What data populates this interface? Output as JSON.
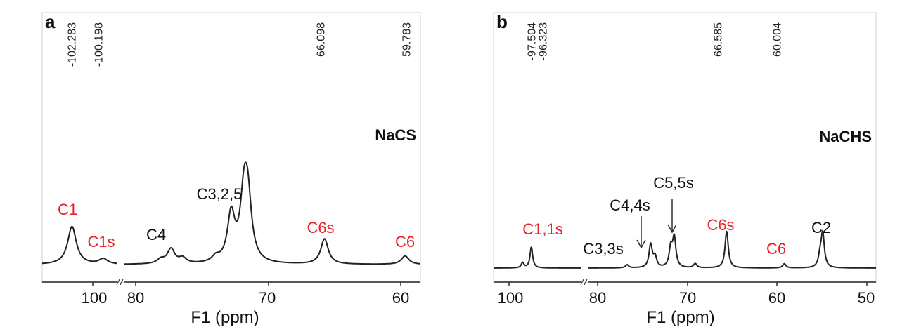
{
  "colors": {
    "black": "#111111",
    "red": "#e8202a",
    "frame": "#d9d9d9"
  },
  "chart_data": [
    {
      "panel": "a",
      "type": "line",
      "sample": "NaCS",
      "xlabel": "F1 (ppm)",
      "x_axis": "reversed, broken between 100 and 80 ppm",
      "x_segments": [
        [
          104.3,
          99.3
        ],
        [
          81.8,
          58.6
        ]
      ],
      "ticks": [
        "100",
        "80",
        "70",
        "60"
      ],
      "shift_labels": [
        "-102.283",
        "-100.198",
        "66.098",
        "59.783"
      ],
      "assignments": [
        {
          "label": "C1",
          "color": "red"
        },
        {
          "label": "C1s",
          "color": "red"
        },
        {
          "label": "C4",
          "color": "black"
        },
        {
          "label": "C3,2,5",
          "color": "black"
        },
        {
          "label": "C6s",
          "color": "red"
        },
        {
          "label": "C6",
          "color": "red"
        }
      ],
      "peaks": [
        {
          "ppm": 102.3,
          "height": 0.36
        },
        {
          "ppm": 100.2,
          "height": 0.05
        },
        {
          "ppm": 78.9,
          "height": 0.04
        },
        {
          "ppm": 78.1,
          "height": 0.14
        },
        {
          "ppm": 77.2,
          "height": 0.05
        },
        {
          "ppm": 74.6,
          "height": 0.05
        },
        {
          "ppm": 73.4,
          "height": 0.45
        },
        {
          "ppm": 72.4,
          "height": 0.55
        },
        {
          "ppm": 72.1,
          "height": 0.55
        },
        {
          "ppm": 66.1,
          "height": 0.24
        },
        {
          "ppm": 59.8,
          "height": 0.08
        }
      ]
    },
    {
      "panel": "b",
      "type": "line",
      "sample": "NaCHS",
      "xlabel": "F1 (ppm)",
      "x_axis": "reversed, broken between 90 and 82 ppm",
      "x_segments": [
        [
          101.5,
          89.5
        ],
        [
          82.5,
          49.5
        ]
      ],
      "ticks": [
        "100",
        "80",
        "70",
        "60",
        "50"
      ],
      "shift_labels": [
        "-97.504",
        "-96.323",
        "66.585",
        "60.004"
      ],
      "assignments": [
        {
          "label": "C1,1s",
          "color": "red"
        },
        {
          "label": "C3,3s",
          "color": "black"
        },
        {
          "label": "C4,4s",
          "color": "black"
        },
        {
          "label": "C5,5s",
          "color": "black"
        },
        {
          "label": "C6s",
          "color": "red"
        },
        {
          "label": "C6",
          "color": "red"
        },
        {
          "label": "C2",
          "color": "black"
        }
      ],
      "peaks": [
        {
          "ppm": 97.5,
          "height": 0.05
        },
        {
          "ppm": 96.3,
          "height": 0.2
        },
        {
          "ppm": 78.0,
          "height": 0.03
        },
        {
          "ppm": 75.3,
          "height": 0.22
        },
        {
          "ppm": 74.8,
          "height": 0.1
        },
        {
          "ppm": 73.0,
          "height": 0.18
        },
        {
          "ppm": 72.6,
          "height": 0.28
        },
        {
          "ppm": 70.2,
          "height": 0.04
        },
        {
          "ppm": 66.6,
          "height": 0.35
        },
        {
          "ppm": 60.0,
          "height": 0.04
        },
        {
          "ppm": 55.6,
          "height": 0.32
        },
        {
          "ppm": 55.9,
          "height": 0.1
        }
      ]
    }
  ]
}
